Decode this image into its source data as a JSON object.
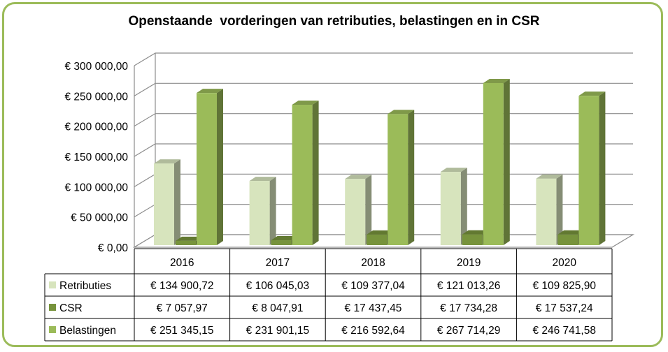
{
  "chart_data": {
    "type": "bar",
    "title": "Openstaande  vorderingen van retributies, belastingen en in CSR",
    "categories": [
      "2016",
      "2017",
      "2018",
      "2019",
      "2020"
    ],
    "ylim": [
      0,
      300000
    ],
    "yticks": [
      0,
      50000,
      100000,
      150000,
      200000,
      250000,
      300000
    ],
    "ytick_labels": [
      "€ 0,00",
      "€ 50 000,00",
      "€ 100 000,00",
      "€ 150 000,00",
      "€ 200 000,00",
      "€ 250 000,00",
      "€ 300 000,00"
    ],
    "grid": true,
    "legend": "data-table",
    "series": [
      {
        "name": "Retributies",
        "color": "#d7e4bd",
        "values": [
          134900.72,
          106045.03,
          109377.04,
          121013.26,
          109825.9
        ],
        "labels": [
          "€ 134 900,72",
          "€ 106 045,03",
          "€ 109 377,04",
          "€ 121 013,26",
          "€ 109 825,90"
        ]
      },
      {
        "name": "CSR",
        "color": "#77933c",
        "values": [
          7057.97,
          8047.91,
          17437.45,
          17734.28,
          17537.24
        ],
        "labels": [
          "€ 7 057,97",
          "€ 8 047,91",
          "€ 17 437,45",
          "€ 17 734,28",
          "€ 17 537,24"
        ]
      },
      {
        "name": "Belastingen",
        "color": "#9bbb59",
        "values": [
          251345.15,
          231901.15,
          216592.64,
          267714.29,
          246741.58
        ],
        "labels": [
          "€ 251 345,15",
          "€ 231 901,15",
          "€ 216 592,64",
          "€ 267 714,29",
          "€ 246 741,58"
        ]
      }
    ]
  }
}
